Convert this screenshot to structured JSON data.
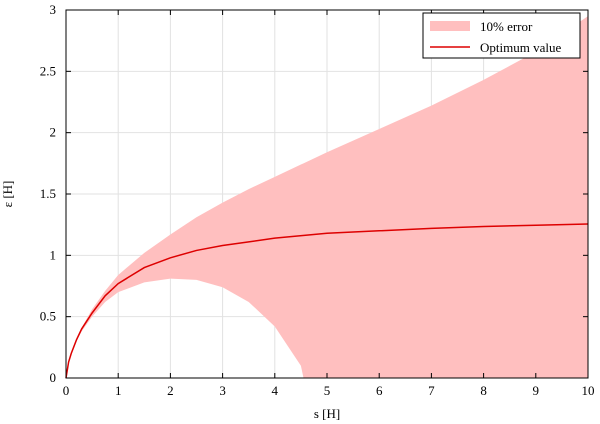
{
  "chart_data": {
    "type": "area",
    "xlabel": "s [H]",
    "ylabel": "ε [H]",
    "xlim": [
      0,
      10
    ],
    "ylim": [
      0,
      3
    ],
    "xticks": [
      "0",
      "1",
      "2",
      "3",
      "4",
      "5",
      "6",
      "7",
      "8",
      "9",
      "10"
    ],
    "yticks": [
      "0",
      "0.5",
      "1",
      "1.5",
      "2",
      "2.5",
      "3"
    ],
    "grid": true,
    "legend_position": "top-right",
    "colors": {
      "band": "#ffbfbf",
      "line": "#dd0000"
    },
    "series": [
      {
        "name": "Optimum value",
        "type": "line",
        "x": [
          0,
          0.05,
          0.1,
          0.2,
          0.3,
          0.5,
          0.75,
          1,
          1.5,
          2,
          2.5,
          3,
          3.5,
          4,
          5,
          6,
          7,
          8,
          9,
          10
        ],
        "y": [
          0,
          0.13,
          0.2,
          0.31,
          0.4,
          0.53,
          0.67,
          0.77,
          0.9,
          0.98,
          1.04,
          1.08,
          1.11,
          1.14,
          1.18,
          1.2,
          1.22,
          1.235,
          1.245,
          1.255
        ]
      },
      {
        "name": "10% error",
        "type": "band",
        "x": [
          0,
          0.05,
          0.1,
          0.2,
          0.3,
          0.5,
          0.75,
          1,
          1.5,
          2,
          2.5,
          3,
          3.5,
          4,
          4.5,
          4.55,
          5,
          6,
          7,
          8,
          9,
          10
        ],
        "upper": [
          0,
          0.13,
          0.2,
          0.32,
          0.41,
          0.56,
          0.71,
          0.84,
          1.02,
          1.17,
          1.31,
          1.43,
          1.54,
          1.64,
          1.74,
          1.75,
          1.84,
          2.03,
          2.22,
          2.43,
          2.66,
          2.95
        ],
        "lower": [
          0,
          0.13,
          0.2,
          0.3,
          0.38,
          0.5,
          0.62,
          0.7,
          0.78,
          0.81,
          0.8,
          0.74,
          0.62,
          0.42,
          0.1,
          0,
          0,
          0,
          0,
          0,
          0,
          0
        ]
      }
    ]
  }
}
